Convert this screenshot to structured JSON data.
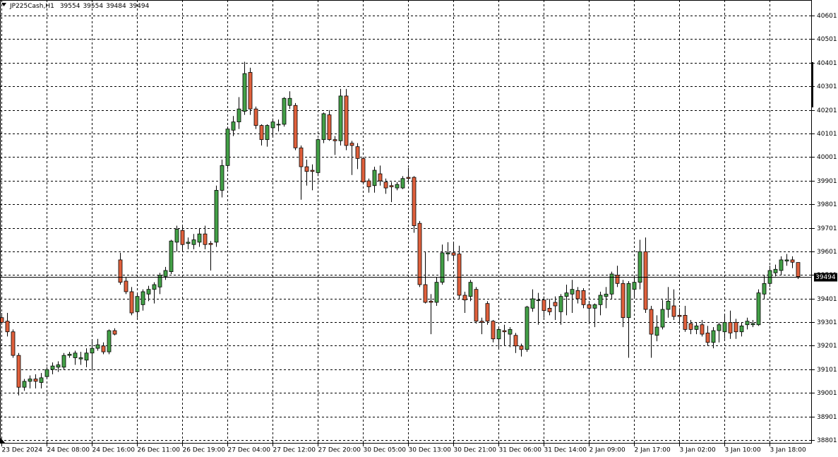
{
  "chart_data": {
    "type": "candlestick",
    "symbol": "JP225Cash,H1",
    "categories": [
      "23 Dec 2024",
      null,
      null,
      null,
      null,
      null,
      null,
      null,
      "24 Dec 08:00",
      null,
      null,
      null,
      null,
      null,
      null,
      null,
      "24 Dec 16:00",
      null,
      null,
      null,
      null,
      null,
      null,
      null,
      "26 Dec 11:00",
      null,
      null,
      null,
      null,
      null,
      null,
      null,
      "26 Dec 19:00",
      null,
      null,
      null,
      null,
      null,
      null,
      null,
      "27 Dec 04:00",
      null,
      null,
      null,
      null,
      null,
      null,
      null,
      "27 Dec 12:00",
      null,
      null,
      null,
      null,
      null,
      null,
      null,
      "27 Dec 20:00",
      null,
      null,
      null,
      null,
      null,
      null,
      null,
      "30 Dec 05:00",
      null,
      null,
      null,
      null,
      null,
      null,
      null,
      "30 Dec 13:00",
      null,
      null,
      null,
      null,
      null,
      null,
      null,
      "30 Dec 21:00",
      null,
      null,
      null,
      null,
      null,
      null,
      null,
      "31 Dec 06:00",
      null,
      null,
      null,
      null,
      null,
      null,
      null,
      "31 Dec 14:00",
      null,
      null,
      null,
      null,
      null,
      null,
      null,
      "2 Jan 09:00",
      null,
      null,
      null,
      null,
      null,
      null,
      null,
      "2 Jan 17:00",
      null,
      null,
      null,
      null,
      null,
      null,
      null,
      "3 Jan 02:00",
      null,
      null,
      null,
      null,
      null,
      null,
      null,
      "3 Jan 10:00",
      null,
      null,
      null,
      null,
      null,
      null,
      null,
      "3 Jan 18:00",
      null,
      null,
      null,
      null,
      null
    ],
    "open": [
      39320,
      39305,
      39260,
      39160,
      39025,
      39050,
      39060,
      39045,
      39070,
      39100,
      39110,
      39110,
      39160,
      39150,
      39145,
      39140,
      39170,
      39190,
      39200,
      39175,
      39265,
      39565,
      39475,
      39430,
      39345,
      39375,
      39420,
      39440,
      39450,
      39495,
      39515,
      39640,
      39690,
      39635,
      39630,
      39640,
      39675,
      39635,
      39640,
      39860,
      39965,
      40115,
      40150,
      40195,
      40360,
      40205,
      40135,
      40075,
      40125,
      40140,
      40140,
      40220,
      40220,
      40040,
      39960,
      39945,
      39935,
      40075,
      40180,
      40075,
      40070,
      40260,
      40060,
      40045,
      39995,
      39900,
      39880,
      39930,
      39895,
      39880,
      39870,
      39870,
      39915,
      39915,
      39720,
      39460,
      39390,
      39385,
      39470,
      39590,
      39595,
      39590,
      39415,
      39410,
      39440,
      39305,
      39380,
      39305,
      39230,
      39265,
      39250,
      39245,
      39200,
      39185,
      39360,
      39395,
      39395,
      39360,
      39385,
      39345,
      39410,
      39420,
      39435,
      39435,
      39375,
      39360,
      39375,
      39410,
      39420,
      39500,
      39465,
      39320,
      39440,
      39470,
      39600,
      39355,
      39245,
      39280,
      39355,
      39370,
      39330,
      39330,
      39295,
      39270,
      39290,
      39255,
      39215,
      39265,
      39260,
      39300,
      39300,
      39260,
      39290,
      39290,
      39290,
      39420,
      39465,
      39510,
      39520,
      39560,
      39565,
      39554
    ],
    "high": [
      39340,
      39340,
      39270,
      39170,
      39060,
      39075,
      39080,
      39085,
      39110,
      39130,
      39135,
      39170,
      39175,
      39180,
      39175,
      39190,
      39220,
      39230,
      39215,
      39270,
      39275,
      39595,
      39490,
      39450,
      39420,
      39440,
      39455,
      39470,
      39510,
      39535,
      39650,
      39710,
      39710,
      39660,
      39675,
      39700,
      39710,
      39645,
      39880,
      39990,
      40130,
      40175,
      40255,
      40405,
      40380,
      40215,
      40140,
      40140,
      40165,
      40160,
      40255,
      40280,
      40230,
      40050,
      39990,
      39970,
      40080,
      40190,
      40200,
      40090,
      40290,
      40290,
      40070,
      40060,
      40000,
      39910,
      39960,
      39965,
      39910,
      39895,
      39895,
      39920,
      39955,
      39920,
      39730,
      39600,
      39420,
      39490,
      39630,
      39640,
      39640,
      39625,
      39430,
      39480,
      39450,
      39320,
      39390,
      39310,
      39275,
      39290,
      39280,
      39255,
      39210,
      39370,
      39440,
      39425,
      39410,
      39400,
      39410,
      39420,
      39460,
      39480,
      39450,
      39445,
      39385,
      39380,
      39430,
      39450,
      39515,
      39540,
      39480,
      39475,
      39500,
      39650,
      39660,
      39370,
      39330,
      39395,
      39450,
      39440,
      39360,
      39370,
      39310,
      39300,
      39310,
      39285,
      39280,
      39300,
      39330,
      39350,
      39315,
      39300,
      39320,
      39310,
      39440,
      39500,
      39540,
      39545,
      39580,
      39590,
      39580,
      39554
    ],
    "low": [
      39290,
      39240,
      39150,
      38990,
      39010,
      39020,
      39020,
      39020,
      39060,
      39080,
      39090,
      39100,
      39150,
      39120,
      39120,
      39110,
      39100,
      39180,
      39165,
      39165,
      39245,
      39460,
      39420,
      39330,
      39320,
      39350,
      39390,
      39380,
      39420,
      39480,
      39505,
      39600,
      39600,
      39610,
      39610,
      39620,
      39610,
      39520,
      39620,
      39830,
      39950,
      40090,
      40120,
      40180,
      40180,
      40120,
      40050,
      40045,
      40090,
      40110,
      40130,
      40205,
      40030,
      39820,
      39880,
      39860,
      39920,
      40060,
      40070,
      40010,
      40050,
      40030,
      39925,
      39950,
      39885,
      39850,
      39850,
      39880,
      39845,
      39810,
      39860,
      39865,
      39895,
      39680,
      39450,
      39380,
      39250,
      39370,
      39460,
      39560,
      39560,
      39400,
      39340,
      39390,
      39295,
      39250,
      39290,
      39215,
      39190,
      39200,
      39195,
      39170,
      39155,
      39175,
      39345,
      39290,
      39320,
      39330,
      39310,
      39290,
      39330,
      39340,
      39380,
      39360,
      39300,
      39280,
      39330,
      39360,
      39400,
      39450,
      39280,
      39150,
      39400,
      39440,
      39340,
      39150,
      39220,
      39270,
      39320,
      39310,
      39290,
      39260,
      39250,
      39250,
      39240,
      39200,
      39190,
      39215,
      39230,
      39230,
      39230,
      39240,
      39270,
      39280,
      39285,
      39400,
      39450,
      39495,
      39500,
      39540,
      39530,
      39484
    ],
    "close": [
      39300,
      39260,
      39160,
      39025,
      39050,
      39060,
      39050,
      39065,
      39100,
      39115,
      39120,
      39160,
      39165,
      39170,
      39150,
      39170,
      39190,
      39205,
      39175,
      39265,
      39250,
      39470,
      39430,
      39340,
      39410,
      39430,
      39440,
      39460,
      39500,
      39520,
      39645,
      39695,
      39630,
      39640,
      39650,
      39675,
      39630,
      39630,
      39860,
      39965,
      40120,
      40150,
      40205,
      40355,
      40205,
      40135,
      40075,
      40135,
      40150,
      40140,
      40250,
      40250,
      40040,
      39960,
      39940,
      39940,
      40075,
      40185,
      40075,
      40070,
      40260,
      40050,
      40050,
      39995,
      39895,
      39875,
      39945,
      39900,
      39870,
      39875,
      39885,
      39910,
      39910,
      39710,
      39460,
      39385,
      39385,
      39470,
      39595,
      39595,
      39585,
      39415,
      39395,
      39470,
      39305,
      39300,
      39305,
      39230,
      39270,
      39260,
      39270,
      39200,
      39185,
      39365,
      39400,
      39395,
      39350,
      39345,
      39370,
      39410,
      39425,
      39440,
      39400,
      39375,
      39360,
      39375,
      39415,
      39420,
      39505,
      39465,
      39320,
      39465,
      39470,
      39600,
      39355,
      39250,
      39280,
      39355,
      39390,
      39325,
      39325,
      39270,
      39270,
      39285,
      39250,
      39215,
      39265,
      39290,
      39300,
      39255,
      39260,
      39285,
      39305,
      39295,
      39425,
      39465,
      39520,
      39525,
      39565,
      39565,
      39555,
      39494
    ],
    "bull_color": "#43a047",
    "bear_color": "#e0603c",
    "ylim": [
      38786,
      40667
    ],
    "yticks": [
      38801,
      38901,
      39001,
      39101,
      39201,
      39301,
      39401,
      39501,
      39601,
      39701,
      39801,
      39901,
      40001,
      40101,
      40201,
      40301,
      40401,
      40501,
      40601
    ],
    "grid": true
  }
}
